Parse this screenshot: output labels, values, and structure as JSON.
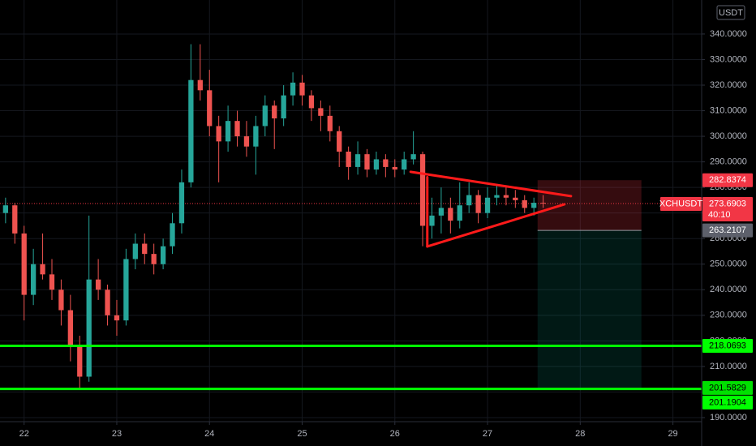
{
  "chart_data": {
    "type": "candlestick",
    "symbol": "XCHUSDT",
    "currency": "USDT",
    "countdown": "40:10",
    "x": [
      21.8,
      21.9,
      22.0,
      22.1,
      22.2,
      22.3,
      22.4,
      22.5,
      22.6,
      22.7,
      22.8,
      22.9,
      23.0,
      23.1,
      23.2,
      23.3,
      23.4,
      23.5,
      23.6,
      23.7,
      23.8,
      23.9,
      24.0,
      24.1,
      24.2,
      24.3,
      24.4,
      24.5,
      24.6,
      24.7,
      24.8,
      24.9,
      25.0,
      25.1,
      25.2,
      25.3,
      25.4,
      25.5,
      25.6,
      25.7,
      25.8,
      25.9,
      26.0,
      26.1,
      26.2,
      26.3,
      26.4,
      26.5,
      26.6,
      26.7,
      26.8,
      26.9,
      27.0,
      27.1,
      27.2,
      27.3,
      27.4,
      27.5,
      27.6
    ],
    "open": [
      270,
      273,
      262,
      238,
      250,
      246,
      240,
      232,
      218,
      206,
      244,
      240,
      230,
      228,
      252,
      258,
      254,
      250,
      257,
      266,
      282,
      322,
      318,
      304,
      298,
      306,
      300,
      296,
      304,
      312,
      307,
      316,
      321,
      316,
      311,
      308,
      302,
      294,
      288,
      293,
      287,
      291,
      288,
      287,
      291,
      293,
      265,
      269,
      272,
      267,
      273,
      277,
      270,
      276,
      277,
      276,
      275,
      272,
      274
    ],
    "high": [
      276,
      274,
      265,
      256,
      262,
      252,
      244,
      238,
      222,
      269,
      252,
      242,
      236,
      256,
      262,
      262,
      258,
      260,
      270,
      287,
      336,
      336,
      326,
      308,
      312,
      310,
      306,
      308,
      316,
      314,
      320,
      325,
      324,
      318,
      314,
      312,
      304,
      296,
      298,
      295,
      294,
      293,
      291,
      294,
      302,
      294,
      276,
      280,
      276,
      282,
      282,
      279,
      280,
      281,
      280,
      279,
      277,
      276,
      277
    ],
    "low": [
      266,
      258,
      228,
      234,
      244,
      236,
      226,
      212,
      201,
      204,
      236,
      226,
      222,
      226,
      248,
      250,
      246,
      248,
      254,
      262,
      280,
      314,
      300,
      282,
      294,
      296,
      292,
      285,
      300,
      295,
      304,
      312,
      312,
      306,
      302,
      298,
      288,
      283,
      285,
      284,
      285,
      284,
      284,
      285,
      289,
      257,
      260,
      262,
      262,
      264,
      270,
      266,
      268,
      273,
      273,
      272,
      270,
      269,
      272
    ],
    "close": [
      273,
      262,
      238,
      250,
      246,
      240,
      232,
      218,
      206,
      244,
      240,
      230,
      228,
      252,
      258,
      254,
      250,
      257,
      266,
      282,
      322,
      318,
      304,
      298,
      306,
      300,
      296,
      304,
      312,
      307,
      316,
      321,
      316,
      311,
      308,
      302,
      294,
      288,
      293,
      287,
      291,
      288,
      287,
      291,
      293,
      265,
      269,
      272,
      267,
      273,
      277,
      270,
      276,
      277,
      276,
      275,
      272,
      274,
      273.6903
    ],
    "up_color": "#26a69a",
    "down_color": "#ef5350",
    "xlim": [
      21.74,
      29.31
    ],
    "ylim": [
      188.4,
      353.3
    ],
    "xticks": [
      22,
      23,
      24,
      25,
      26,
      27,
      28,
      29
    ],
    "yticks": [
      {
        "value": 190,
        "label": "190.0000"
      },
      {
        "value": 200,
        "label": "200.0000"
      },
      {
        "value": 210,
        "label": "210.0000"
      },
      {
        "value": 220,
        "label": "220.0000"
      },
      {
        "value": 230,
        "label": "230.0000"
      },
      {
        "value": 240,
        "label": "240.0000"
      },
      {
        "value": 250,
        "label": "250.0000"
      },
      {
        "value": 260,
        "label": "260.0000"
      },
      {
        "value": 270,
        "label": "270.0000"
      },
      {
        "value": 280,
        "label": "280.0000"
      },
      {
        "value": 290,
        "label": "290.0000"
      },
      {
        "value": 300,
        "label": "300.0000"
      },
      {
        "value": 310,
        "label": "310.0000"
      },
      {
        "value": 320,
        "label": "320.0000"
      },
      {
        "value": 330,
        "label": "330.0000"
      },
      {
        "value": 340,
        "label": "340.0000"
      }
    ],
    "grid": true,
    "last_price": {
      "value": 273.6903,
      "color": "#f23645"
    },
    "hlines": [
      {
        "value": 218.0693,
        "color": "#00ff00"
      },
      {
        "value": 201.1904,
        "color": "#00ff00"
      }
    ],
    "position": {
      "x": [
        27.54,
        28.66
      ],
      "stop": 282.8374,
      "entry": 263.2107,
      "target": 201.5829,
      "stop_color": "#f23645",
      "entry_color": "#5d606b",
      "target_color": "#00e000"
    },
    "trendlines": [
      {
        "x": [
          26.17,
          27.9
        ],
        "y": [
          286.1,
          276.6
        ],
        "color": "#ff1a1a"
      },
      {
        "x": [
          26.35,
          27.83
        ],
        "y": [
          256.9,
          273.4
        ],
        "color": "#ff1a1a"
      },
      {
        "x": [
          26.35,
          26.35
        ],
        "y": [
          284.0,
          256.9
        ],
        "color": "#ff1a1a"
      }
    ]
  }
}
